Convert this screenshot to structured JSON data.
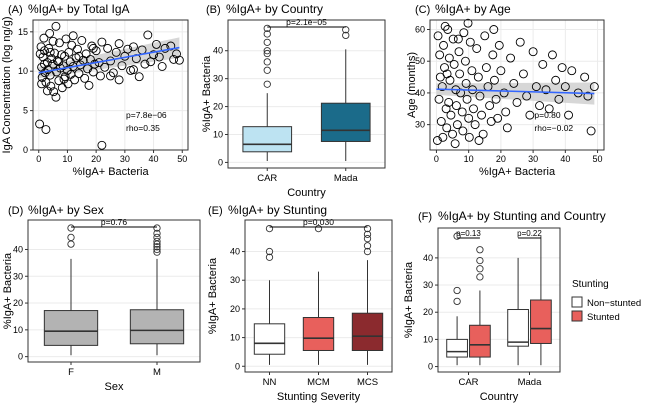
{
  "figure": {
    "colors": {
      "grid": "#ebebeb",
      "panel_border": "#333333",
      "point_stroke": "#000000",
      "trend_line": "#3366ff",
      "ci_band": "#c9c9c9",
      "box_stroke": "#333333",
      "outlier_stroke": "#333333"
    }
  },
  "chart_data": [
    {
      "panel_id": "A",
      "panel_label": "(A)",
      "type": "scatter",
      "title": "%IgA+ by Total IgA",
      "xlabel": "%IgA+ Bacteria",
      "ylabel": "IgA Concentration (log ng/g)",
      "xlim": [
        -2,
        52
      ],
      "ylim": [
        0,
        16.5
      ],
      "xticks": [
        0,
        10,
        20,
        30,
        40,
        50
      ],
      "yticks": [
        0,
        5,
        10,
        15
      ],
      "grid": true,
      "annotations": [
        "p=7.8e−06",
        "rho=0.35"
      ],
      "points": [
        [
          0.5,
          12.2
        ],
        [
          1,
          10.5
        ],
        [
          1.2,
          9.2
        ],
        [
          0.8,
          13.1
        ],
        [
          1.5,
          11.8
        ],
        [
          2,
          12.6
        ],
        [
          2.2,
          9.8
        ],
        [
          2.5,
          8.6
        ],
        [
          1.8,
          14.2
        ],
        [
          3,
          11.1
        ],
        [
          3.2,
          10.2
        ],
        [
          3.5,
          12.9
        ],
        [
          4,
          9.5
        ],
        [
          4.2,
          8.1
        ],
        [
          3.8,
          14.8
        ],
        [
          4.5,
          11.6
        ],
        [
          5,
          10.9
        ],
        [
          5.2,
          7.4
        ],
        [
          5.5,
          12.3
        ],
        [
          6,
          15.7
        ],
        [
          6.2,
          9.9
        ],
        [
          6.5,
          11.3
        ],
        [
          7,
          8.8
        ],
        [
          7.2,
          13.6
        ],
        [
          7.5,
          10.4
        ],
        [
          8,
          12.1
        ],
        [
          8.2,
          7.9
        ],
        [
          8.5,
          10.7
        ],
        [
          9,
          11.9
        ],
        [
          9.2,
          9.3
        ],
        [
          9.5,
          14.1
        ],
        [
          10,
          10.1
        ],
        [
          10.2,
          8.4
        ],
        [
          10.5,
          12.4
        ],
        [
          11,
          11.2
        ],
        [
          11.2,
          9.6
        ],
        [
          11.5,
          13.3
        ],
        [
          12,
          10.6
        ],
        [
          12.5,
          8.9
        ],
        [
          13,
          11.7
        ],
        [
          13.5,
          12.8
        ],
        [
          14,
          9.7
        ],
        [
          14.5,
          10.8
        ],
        [
          15,
          13.9
        ],
        [
          15.5,
          11.4
        ],
        [
          16,
          9.1
        ],
        [
          16.5,
          12.2
        ],
        [
          17,
          10.3
        ],
        [
          17.5,
          8.2
        ],
        [
          18,
          11.5
        ],
        [
          18.5,
          13.2
        ],
        [
          19,
          9.9
        ],
        [
          19.5,
          10.9
        ],
        [
          20,
          12.6
        ],
        [
          21,
          11.1
        ],
        [
          21.5,
          9.4
        ],
        [
          22,
          13.7
        ],
        [
          23,
          10.5
        ],
        [
          24,
          12.9
        ],
        [
          25,
          11.3
        ],
        [
          26,
          9.8
        ],
        [
          27,
          12.4
        ],
        [
          28,
          13.5
        ],
        [
          29,
          10.7
        ],
        [
          30,
          11.9
        ],
        [
          31,
          12.8
        ],
        [
          32,
          10.1
        ],
        [
          33,
          13.1
        ],
        [
          34,
          11.6
        ],
        [
          35,
          9.3
        ],
        [
          36,
          12.7
        ],
        [
          37,
          10.9
        ],
        [
          38,
          14.6
        ],
        [
          39,
          11.2
        ],
        [
          40,
          12.1
        ],
        [
          41,
          13.4
        ],
        [
          42,
          11.8
        ],
        [
          44,
          12.9
        ],
        [
          46,
          13.2
        ],
        [
          47,
          11.5
        ],
        [
          48,
          12.2
        ],
        [
          49,
          11.4
        ],
        [
          0.3,
          3.3
        ],
        [
          2.5,
          2.6
        ],
        [
          22,
          0.6
        ],
        [
          3,
          7.5
        ],
        [
          6,
          6.7
        ],
        [
          1,
          8.4
        ],
        [
          2,
          10.9
        ],
        [
          4,
          12.4
        ],
        [
          5,
          13.8
        ],
        [
          7,
          11.2
        ],
        [
          8.8,
          9.0
        ],
        [
          12,
          14.5
        ],
        [
          14,
          11.9
        ],
        [
          19,
          12.9
        ],
        [
          25,
          9.4
        ],
        [
          28,
          8.9
        ],
        [
          33,
          10.2
        ],
        [
          43,
          10.6
        ]
      ],
      "trend": {
        "x": [
          0,
          49
        ],
        "y": [
          9.8,
          13.0
        ],
        "ci_at_start": 0.7,
        "ci_at_end": 1.3
      }
    },
    {
      "panel_id": "B",
      "panel_label": "(B)",
      "type": "box",
      "title": "%IgA+ by Country",
      "xlabel": "Country",
      "ylabel": "%IgA+ Bacteria",
      "ylim": [
        -2,
        51
      ],
      "yticks": [
        0,
        10,
        20,
        30,
        40
      ],
      "grid": true,
      "categories": [
        "CAR",
        "Mada"
      ],
      "boxes": [
        {
          "q1": 3.8,
          "median": 6.5,
          "q3": 12.8,
          "low": 0.5,
          "high": 24.8,
          "outliers": [
            28,
            33,
            36,
            39,
            40,
            43,
            46,
            48
          ],
          "fill": "#bde3f2"
        },
        {
          "q1": 7.5,
          "median": 11.5,
          "q3": 21.2,
          "low": 0.5,
          "high": 40.5,
          "outliers": [
            45.5,
            47.5
          ],
          "fill": "#1b6b8a"
        }
      ],
      "comparisons": [
        {
          "label": "p=2.1e−05"
        }
      ]
    },
    {
      "panel_id": "C",
      "panel_label": "(C)",
      "type": "scatter",
      "title": "%IgA+ by Age",
      "xlabel": "%IgA+ Bacteria",
      "ylabel": "Age (months)",
      "xlim": [
        -2,
        52
      ],
      "ylim": [
        22,
        63
      ],
      "xticks": [
        0,
        10,
        20,
        30,
        40,
        50
      ],
      "yticks": [
        30,
        40,
        50,
        60
      ],
      "grid": true,
      "annotations": [
        "p=0.80",
        "rho=−0.02"
      ],
      "points": [
        [
          0.5,
          58
        ],
        [
          1,
          52
        ],
        [
          1.2,
          45
        ],
        [
          0.8,
          38
        ],
        [
          1.5,
          31
        ],
        [
          2,
          26
        ],
        [
          2.2,
          55
        ],
        [
          2.5,
          48
        ],
        [
          1.8,
          42
        ],
        [
          3,
          35
        ],
        [
          3.2,
          29
        ],
        [
          3.5,
          60
        ],
        [
          4,
          51
        ],
        [
          4.2,
          44
        ],
        [
          3.8,
          37
        ],
        [
          4.5,
          33
        ],
        [
          5,
          27
        ],
        [
          5.2,
          57
        ],
        [
          5.5,
          49
        ],
        [
          6,
          41
        ],
        [
          6.2,
          36
        ],
        [
          6.5,
          30
        ],
        [
          7,
          53
        ],
        [
          7.2,
          46
        ],
        [
          7.5,
          40
        ],
        [
          8,
          34
        ],
        [
          8.2,
          28
        ],
        [
          8.5,
          59
        ],
        [
          9,
          50
        ],
        [
          9.2,
          43
        ],
        [
          9.5,
          38
        ],
        [
          10,
          32
        ],
        [
          10.2,
          26
        ],
        [
          10.5,
          56
        ],
        [
          11,
          47
        ],
        [
          11.2,
          41
        ],
        [
          11.5,
          35
        ],
        [
          12,
          30
        ],
        [
          12.5,
          54
        ],
        [
          13,
          45
        ],
        [
          13.5,
          39
        ],
        [
          14,
          33
        ],
        [
          14.5,
          27
        ],
        [
          15,
          58
        ],
        [
          15.5,
          48
        ],
        [
          16,
          42
        ],
        [
          16.5,
          36
        ],
        [
          17,
          31
        ],
        [
          17.5,
          52
        ],
        [
          18,
          44
        ],
        [
          18.5,
          38
        ],
        [
          19,
          32
        ],
        [
          19.5,
          55
        ],
        [
          20,
          47
        ],
        [
          21,
          40
        ],
        [
          21.5,
          34
        ],
        [
          22,
          29
        ],
        [
          23,
          51
        ],
        [
          24,
          43
        ],
        [
          25,
          37
        ],
        [
          26,
          56
        ],
        [
          27,
          46
        ],
        [
          28,
          39
        ],
        [
          29,
          33
        ],
        [
          30,
          53
        ],
        [
          31,
          42
        ],
        [
          32,
          36
        ],
        [
          33,
          49
        ],
        [
          34,
          41
        ],
        [
          35,
          35
        ],
        [
          36,
          52
        ],
        [
          37,
          44
        ],
        [
          38,
          38
        ],
        [
          39,
          48
        ],
        [
          40,
          42
        ],
        [
          41,
          33
        ],
        [
          42,
          47
        ],
        [
          44,
          40
        ],
        [
          46,
          45
        ],
        [
          47,
          39
        ],
        [
          48,
          28
        ],
        [
          49,
          42
        ],
        [
          0.3,
          25
        ],
        [
          2.7,
          61
        ],
        [
          5.8,
          24
        ],
        [
          9.8,
          62
        ],
        [
          13.2,
          25
        ],
        [
          17.8,
          60
        ],
        [
          3.3,
          46
        ],
        [
          6.8,
          57
        ]
      ],
      "trend": {
        "x": [
          0,
          49
        ],
        "y": [
          41.2,
          39.8
        ],
        "ci_at_start": 1.8,
        "ci_at_end": 3.5
      }
    },
    {
      "panel_id": "D",
      "panel_label": "(D)",
      "type": "box",
      "title": "%IgA+ by Sex",
      "xlabel": "Sex",
      "ylabel": "%IgA+ Bacteria",
      "ylim": [
        -2,
        51
      ],
      "yticks": [
        0,
        10,
        20,
        30,
        40
      ],
      "grid": true,
      "categories": [
        "F",
        "M"
      ],
      "boxes": [
        {
          "q1": 4.2,
          "median": 9.5,
          "q3": 17.2,
          "low": 0.5,
          "high": 36.5,
          "outliers": [
            42,
            44.5,
            48
          ],
          "fill": "#b3b3b3"
        },
        {
          "q1": 4.8,
          "median": 9.8,
          "q3": 17.5,
          "low": 0.5,
          "high": 36.5,
          "outliers": [
            39,
            40,
            41,
            42,
            43,
            44.5,
            46,
            48
          ],
          "fill": "#b3b3b3"
        }
      ],
      "comparisons": [
        {
          "label": "p=0.76"
        }
      ]
    },
    {
      "panel_id": "E",
      "panel_label": "(E)",
      "type": "box",
      "title": "%IgA+ by Stunting",
      "xlabel": "Stunting Severity",
      "ylabel": "%IgA+ Bacteria",
      "ylim": [
        -2,
        51
      ],
      "yticks": [
        0,
        10,
        20,
        30,
        40
      ],
      "grid": true,
      "categories": [
        "NN",
        "MCM",
        "MCS"
      ],
      "boxes": [
        {
          "q1": 4.2,
          "median": 8.0,
          "q3": 14.8,
          "low": 0.5,
          "high": 30.0,
          "outliers": [
            38,
            40,
            48
          ],
          "fill": "#ffffff"
        },
        {
          "q1": 5.5,
          "median": 9.8,
          "q3": 17.0,
          "low": 0.5,
          "high": 33.0,
          "outliers": [
            48
          ],
          "fill": "#e8605c"
        },
        {
          "q1": 5.5,
          "median": 10.5,
          "q3": 18.5,
          "low": 0.5,
          "high": 37.0,
          "outliers": [
            40,
            42,
            44.5,
            46,
            48
          ],
          "fill": "#8b2a2e"
        }
      ],
      "comparisons": [
        {
          "label": "p=0.030"
        }
      ]
    },
    {
      "panel_id": "F",
      "panel_label": "(F)",
      "type": "box",
      "title": "%IgA+ by Stunting and Country",
      "xlabel": "Country",
      "ylabel": "%IgA+ Bacteria",
      "ylim": [
        -2,
        51
      ],
      "yticks": [
        0,
        10,
        20,
        30,
        40
      ],
      "grid": true,
      "categories": [
        "CAR",
        "Mada"
      ],
      "legend": {
        "title": "Stunting",
        "position": "right",
        "entries": [
          {
            "label": "Non−stunted",
            "fill": "#ffffff"
          },
          {
            "label": "Stunted",
            "fill": "#e8605c"
          }
        ]
      },
      "boxes": [
        {
          "category": "CAR",
          "group": "Non−stunted",
          "q1": 3.5,
          "median": 5.5,
          "q3": 10.0,
          "low": 0.5,
          "high": 18.5,
          "outliers": [
            24,
            28,
            48
          ],
          "fill": "#ffffff"
        },
        {
          "category": "CAR",
          "group": "Stunted",
          "q1": 3.5,
          "median": 8.0,
          "q3": 15.2,
          "low": 0.5,
          "high": 28.0,
          "outliers": [
            33,
            36,
            39,
            43
          ],
          "fill": "#e8605c"
        },
        {
          "category": "Mada",
          "group": "Non−stunted",
          "q1": 7.5,
          "median": 9.0,
          "q3": 21.0,
          "low": 0.5,
          "high": 40.0,
          "outliers": [],
          "fill": "#ffffff"
        },
        {
          "category": "Mada",
          "group": "Stunted",
          "q1": 8.5,
          "median": 14.0,
          "q3": 24.5,
          "low": 0.5,
          "high": 48.0,
          "outliers": [],
          "fill": "#e8605c"
        }
      ],
      "comparisons": [
        {
          "label": "p=0.13"
        },
        {
          "label": "p=0.22"
        }
      ]
    }
  ]
}
